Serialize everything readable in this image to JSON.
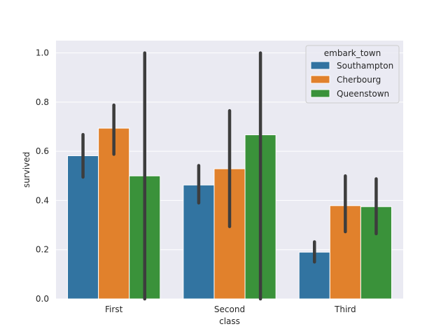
{
  "chart_data": {
    "type": "bar",
    "categories": [
      "First",
      "Second",
      "Third"
    ],
    "xlabel": "class",
    "ylabel": "survived",
    "ylim": [
      0,
      1.05
    ],
    "yticks": [
      "0.0",
      "0.2",
      "0.4",
      "0.6",
      "0.8",
      "1.0"
    ],
    "grid": true,
    "legend": {
      "title": "embark_town",
      "placement": "top-right"
    },
    "series": [
      {
        "name": "Southampton",
        "color": "#3274a1",
        "values": [
          0.582,
          0.463,
          0.19
        ],
        "ci": [
          [
            0.495,
            0.668
          ],
          [
            0.39,
            0.542
          ],
          [
            0.15,
            0.232
          ]
        ]
      },
      {
        "name": "Cherbourg",
        "color": "#e1812c",
        "values": [
          0.694,
          0.529,
          0.379
        ],
        "ci": [
          [
            0.588,
            0.788
          ],
          [
            0.294,
            0.765
          ],
          [
            0.273,
            0.5
          ]
        ]
      },
      {
        "name": "Queenstown",
        "color": "#3a923a",
        "values": [
          0.5,
          0.667,
          0.375
        ],
        "ci": [
          [
            0.0,
            1.0
          ],
          [
            0.0,
            1.0
          ],
          [
            0.265,
            0.488
          ]
        ]
      }
    ]
  }
}
